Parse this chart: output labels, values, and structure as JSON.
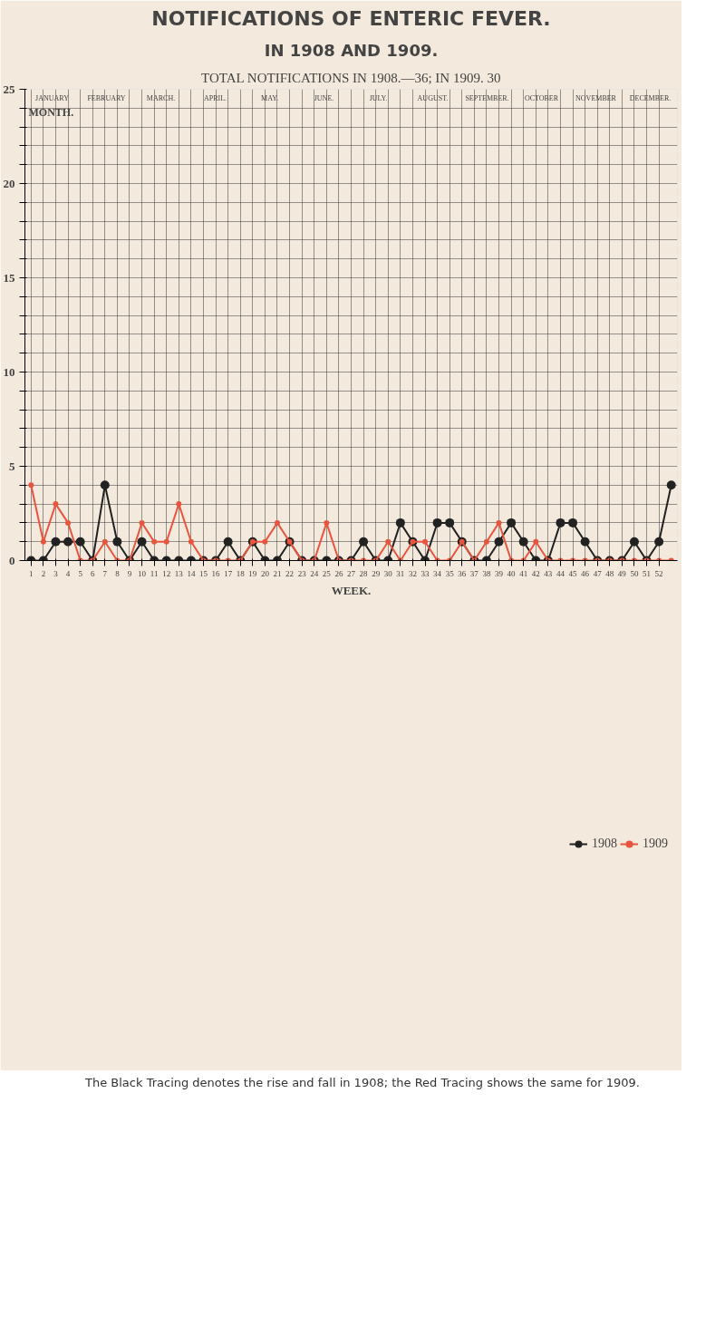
{
  "chart_data": {
    "type": "line",
    "title": "NOTIFICATIONS OF ENTERIC FEVER.",
    "subtitle": "IN 1908 AND 1909.",
    "annotations": [
      "TOTAL NOTIFICATIONS IN 1908.—36; IN 1909. 30",
      "The Black Tracing denotes the rise and fall in 1908; the Red Tracing shows the same for 1909.",
      "MONTH.",
      "JANUARY",
      "FEBRUARY",
      "MARCH.",
      "APRIL.",
      "MAY.",
      "JUNE.",
      "JULY.",
      "AUGUST.",
      "SEPTEMBER.",
      "OCTOBER",
      "NOVEMBER",
      "DECEMBER."
    ],
    "xlabel": "WEEK.",
    "x": [
      1,
      2,
      3,
      4,
      5,
      6,
      7,
      8,
      9,
      10,
      11,
      12,
      13,
      14,
      15,
      16,
      17,
      18,
      19,
      20,
      21,
      22,
      23,
      24,
      25,
      26,
      27,
      28,
      29,
      30,
      31,
      32,
      33,
      34,
      35,
      36,
      37,
      38,
      39,
      40,
      41,
      42,
      43,
      44,
      45,
      46,
      47,
      48,
      49,
      50,
      51,
      52,
      53
    ],
    "series": [
      {
        "name": "1908",
        "color": "#222222",
        "values": [
          0,
          0,
          1,
          1,
          1,
          0,
          4,
          1,
          0,
          1,
          0,
          0,
          0,
          0,
          0,
          0,
          1,
          0,
          1,
          0,
          0,
          1,
          0,
          0,
          0,
          0,
          0,
          1,
          0,
          0,
          2,
          1,
          0,
          2,
          2,
          1,
          0,
          0,
          1,
          2,
          1,
          0,
          0,
          2,
          2,
          1,
          0,
          0,
          0,
          1,
          0,
          1,
          4
        ]
      },
      {
        "name": "1909",
        "color": "#e8553e",
        "values": [
          4,
          1,
          3,
          2,
          0,
          0,
          1,
          0,
          0,
          2,
          1,
          1,
          3,
          1,
          0,
          0,
          0,
          0,
          1,
          1,
          2,
          1,
          0,
          0,
          2,
          0,
          0,
          0,
          0,
          1,
          0,
          1,
          1,
          0,
          0,
          1,
          0,
          1,
          2,
          0,
          0,
          1,
          0,
          0,
          0,
          0,
          0,
          0,
          0,
          0,
          0,
          0,
          0
        ]
      }
    ],
    "xlim": [
      0.5,
      53.5
    ],
    "ylim": [
      0,
      25
    ],
    "xticks": [
      1,
      2,
      3,
      4,
      5,
      6,
      7,
      8,
      9,
      10,
      11,
      12,
      13,
      14,
      15,
      16,
      17,
      18,
      19,
      20,
      21,
      22,
      23,
      24,
      25,
      26,
      27,
      28,
      29,
      30,
      31,
      32,
      33,
      34,
      35,
      36,
      37,
      38,
      39,
      40,
      41,
      42,
      43,
      44,
      45,
      46,
      47,
      48,
      49,
      50,
      51,
      52
    ],
    "yticks": [
      0,
      {
        "value": 1,
        "label": null
      },
      {
        "value": 2,
        "label": null
      },
      {
        "value": 3,
        "label": null
      },
      {
        "value": 4,
        "label": null
      },
      5,
      {
        "value": 6,
        "label": null
      },
      {
        "value": 7,
        "label": null
      },
      {
        "value": 8,
        "label": null
      },
      {
        "value": 9,
        "label": null
      },
      10,
      {
        "value": 11,
        "label": null
      },
      {
        "value": 12,
        "label": null
      },
      {
        "value": 13,
        "label": null
      },
      {
        "value": 14,
        "label": null
      },
      15,
      {
        "value": 16,
        "label": null
      },
      {
        "value": 17,
        "label": null
      },
      {
        "value": 18,
        "label": null
      },
      {
        "value": 19,
        "label": null
      },
      20,
      {
        "value": 21,
        "label": null
      },
      {
        "value": 22,
        "label": null
      },
      {
        "value": 23,
        "label": null
      },
      {
        "value": 24,
        "label": null
      },
      25
    ],
    "grid": true,
    "legend": "bottom",
    "marker": "circle",
    "line_style": "solid"
  }
}
